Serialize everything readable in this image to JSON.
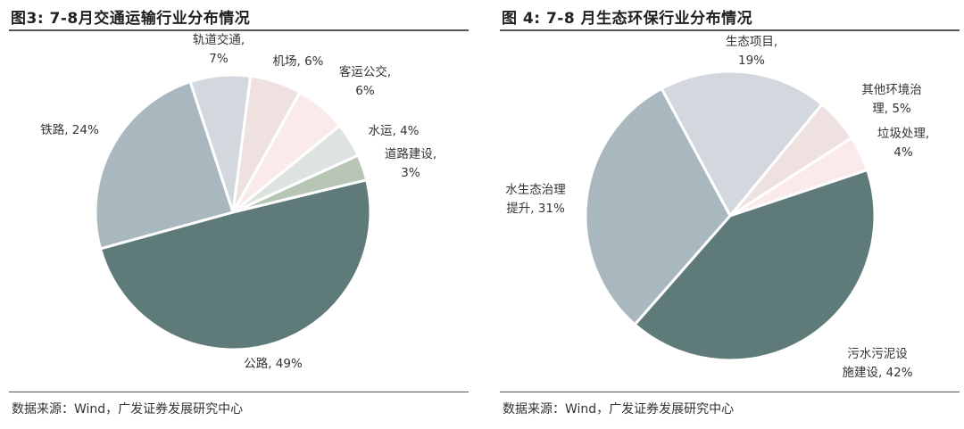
{
  "charts": [
    {
      "title": "图3:  7-8月交通运输行业分布情况",
      "source": "数据来源：Wind，广发证券发展研究中心"
    },
    {
      "title": "图 4:  7-8 月生态环保行业分布情况",
      "source": "数据来源：Wind，广发证券发展研究中心"
    }
  ],
  "chart_data": [
    {
      "type": "pie",
      "title": "图3:  7-8月交通运输行业分布情况",
      "slices": [
        {
          "label": "道路建设",
          "value": 3,
          "text": [
            "道路建设,",
            "3%"
          ],
          "color": "#b7c5b4"
        },
        {
          "label": "水运",
          "value": 4,
          "text": [
            "水运, 4%"
          ],
          "color": "#dde3de"
        },
        {
          "label": "客运公交",
          "value": 6,
          "text": [
            "客运公交,",
            "6%"
          ],
          "color": "#fbeaea"
        },
        {
          "label": "机场",
          "value": 6,
          "text": [
            "机场, 6%"
          ],
          "color": "#f0e1e1"
        },
        {
          "label": "轨道交通",
          "value": 7,
          "text": [
            "轨道交通,",
            "7%"
          ],
          "color": "#d3d8de"
        },
        {
          "label": "铁路",
          "value": 24,
          "text": [
            "铁路, 24%"
          ],
          "color": "#a9b8bf"
        },
        {
          "label": "公路",
          "value": 49,
          "text": [
            "公路, 49%"
          ],
          "color": "#5e7b79"
        }
      ]
    },
    {
      "type": "pie",
      "title": "图 4:  7-8 月生态环保行业分布情况",
      "slices": [
        {
          "label": "垃圾处理",
          "value": 4,
          "text": [
            "垃圾处理,",
            "4%"
          ],
          "color": "#fbeaea"
        },
        {
          "label": "其他环境治理",
          "value": 5,
          "text": [
            "其他环境治",
            "理, 5%"
          ],
          "color": "#f0e1e1"
        },
        {
          "label": "生态项目",
          "value": 19,
          "text": [
            "生态项目,",
            "19%"
          ],
          "color": "#d3d8de"
        },
        {
          "label": "水生态治理提升",
          "value": 31,
          "text": [
            "水生态治理",
            "提升, 31%"
          ],
          "color": "#a9b8bf"
        },
        {
          "label": "污水污泥设施建设",
          "value": 42,
          "text": [
            "污水污泥设",
            "施建设, 42%"
          ],
          "color": "#5e7b79"
        }
      ]
    }
  ]
}
